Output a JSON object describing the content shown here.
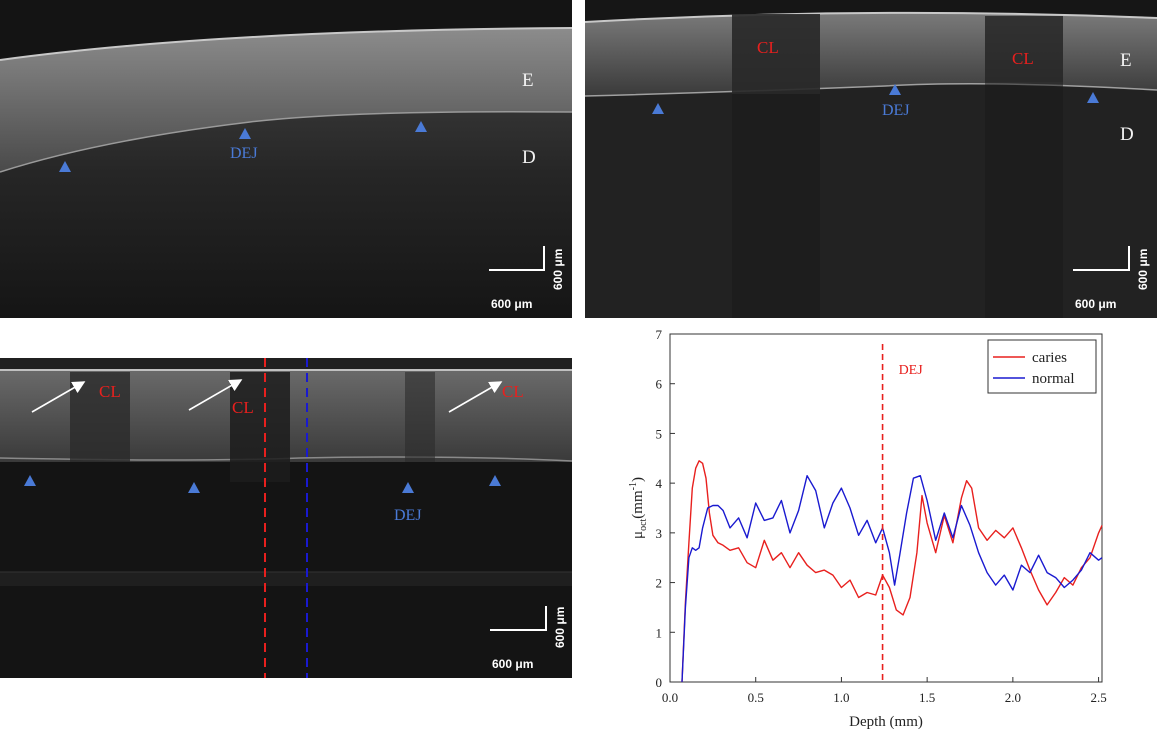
{
  "panels": {
    "a": {
      "label_e": "E",
      "label_d": "D",
      "dej": "DEJ",
      "scale_h": "600 μm",
      "scale_v": "600 μm"
    },
    "b": {
      "label_e": "E",
      "label_d": "D",
      "dej": "DEJ",
      "cl1": "CL",
      "cl2": "CL",
      "scale_h": "600 μm",
      "scale_v": "600 μm"
    },
    "c": {
      "dej": "DEJ",
      "cl1": "CL",
      "cl2": "CL",
      "cl3": "CL",
      "scale_h": "600 μm",
      "scale_v": "600 μm"
    }
  },
  "colors": {
    "caries": "#e8201e",
    "normal": "#1a1ad0",
    "marker": "#4a7ad6",
    "dej_line": "#e8201e"
  },
  "chart_data": {
    "type": "line",
    "xlabel": "Depth (mm)",
    "ylabel": "μoct(mm⁻¹)",
    "ylabel_main": "μ",
    "ylabel_sub": "oct",
    "ylabel_unit_open": "(mm",
    "ylabel_unit_sup": "-1",
    "ylabel_unit_close": ")",
    "xlim": [
      0,
      2.52
    ],
    "ylim": [
      0,
      7
    ],
    "xticks": [
      "0.0",
      "0.5",
      "1.0",
      "1.5",
      "2.0",
      "2.5"
    ],
    "yticks": [
      "0",
      "1",
      "2",
      "3",
      "4",
      "5",
      "6",
      "7"
    ],
    "legend_position": "top-right",
    "annotation": {
      "text": "DEJ",
      "x": 1.24
    },
    "series": [
      {
        "name": "caries",
        "x": [
          0.07,
          0.09,
          0.11,
          0.13,
          0.15,
          0.17,
          0.19,
          0.21,
          0.23,
          0.25,
          0.28,
          0.31,
          0.35,
          0.4,
          0.45,
          0.5,
          0.55,
          0.6,
          0.65,
          0.7,
          0.75,
          0.8,
          0.85,
          0.9,
          0.95,
          1.0,
          1.05,
          1.1,
          1.15,
          1.2,
          1.24,
          1.28,
          1.32,
          1.36,
          1.4,
          1.44,
          1.47,
          1.5,
          1.55,
          1.6,
          1.65,
          1.7,
          1.73,
          1.76,
          1.8,
          1.85,
          1.9,
          1.95,
          2.0,
          2.05,
          2.1,
          2.15,
          2.2,
          2.25,
          2.3,
          2.35,
          2.4,
          2.45,
          2.5,
          2.52
        ],
        "y": [
          0.0,
          1.6,
          2.8,
          3.9,
          4.3,
          4.45,
          4.4,
          4.1,
          3.4,
          2.95,
          2.8,
          2.75,
          2.65,
          2.7,
          2.4,
          2.3,
          2.85,
          2.45,
          2.6,
          2.3,
          2.6,
          2.35,
          2.2,
          2.25,
          2.15,
          1.9,
          2.05,
          1.7,
          1.8,
          1.75,
          2.15,
          1.9,
          1.45,
          1.35,
          1.7,
          2.6,
          3.75,
          3.2,
          2.6,
          3.35,
          2.8,
          3.7,
          4.05,
          3.9,
          3.1,
          2.85,
          3.05,
          2.9,
          3.1,
          2.7,
          2.25,
          1.85,
          1.55,
          1.8,
          2.1,
          1.95,
          2.3,
          2.5,
          3.0,
          3.15
        ]
      },
      {
        "name": "normal",
        "x": [
          0.07,
          0.09,
          0.11,
          0.13,
          0.15,
          0.17,
          0.19,
          0.22,
          0.25,
          0.28,
          0.31,
          0.35,
          0.4,
          0.45,
          0.5,
          0.55,
          0.6,
          0.65,
          0.7,
          0.75,
          0.8,
          0.85,
          0.9,
          0.95,
          1.0,
          1.05,
          1.1,
          1.15,
          1.2,
          1.24,
          1.28,
          1.31,
          1.34,
          1.38,
          1.42,
          1.46,
          1.5,
          1.55,
          1.6,
          1.65,
          1.7,
          1.75,
          1.8,
          1.85,
          1.9,
          1.95,
          2.0,
          2.05,
          2.1,
          2.15,
          2.2,
          2.25,
          2.3,
          2.35,
          2.4,
          2.45,
          2.5,
          2.52
        ],
        "y": [
          0.0,
          1.5,
          2.5,
          2.7,
          2.65,
          2.7,
          3.1,
          3.5,
          3.55,
          3.55,
          3.45,
          3.1,
          3.3,
          2.9,
          3.6,
          3.25,
          3.3,
          3.65,
          3.0,
          3.45,
          4.15,
          3.85,
          3.1,
          3.6,
          3.9,
          3.5,
          2.95,
          3.25,
          2.8,
          3.1,
          2.6,
          1.95,
          2.55,
          3.4,
          4.1,
          4.15,
          3.65,
          2.85,
          3.4,
          2.9,
          3.55,
          3.15,
          2.6,
          2.2,
          1.95,
          2.15,
          1.85,
          2.35,
          2.2,
          2.55,
          2.2,
          2.1,
          1.9,
          2.05,
          2.25,
          2.6,
          2.45,
          2.5
        ]
      }
    ]
  }
}
